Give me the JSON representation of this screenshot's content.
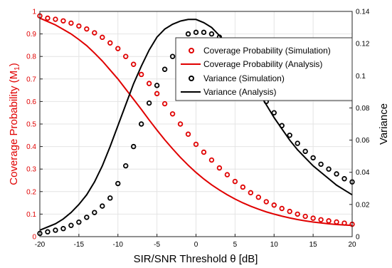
{
  "chart_data": {
    "type": "line",
    "xlabel": "SIR/SNR Threshold θ [dB]",
    "ylabel_left": "Coverage Probability (M",
    "ylabel_left_subscript": "1",
    "ylabel_left_close": ")",
    "ylabel_right": "Variance",
    "xlim": [
      -20,
      20
    ],
    "ylim_left": [
      0,
      1
    ],
    "ylim_right": [
      0,
      0.14
    ],
    "x_ticks": [
      "-20",
      "-15",
      "-10",
      "-5",
      "0",
      "5",
      "10",
      "15",
      "20"
    ],
    "y_left_ticks": [
      "0",
      "0.1",
      "0.2",
      "0.3",
      "0.4",
      "0.5",
      "0.6",
      "0.7",
      "0.8",
      "0.9",
      "1"
    ],
    "y_right_ticks": [
      "0",
      "0.02",
      "0.04",
      "0.06",
      "0.08",
      "0.1",
      "0.12",
      "0.14"
    ],
    "grid": true,
    "legend_position": "top-right",
    "colors": {
      "coverage": "#e00000",
      "variance": "#000000"
    },
    "series": [
      {
        "name": "Coverage Probability (Simulation)",
        "axis": "left",
        "style": "marker",
        "color": "#e00000",
        "x": [
          -20,
          -19,
          -18,
          -17,
          -16,
          -15,
          -14,
          -13,
          -12,
          -11,
          -10,
          -9,
          -8,
          -7,
          -6,
          -5,
          -4,
          -3,
          -2,
          -1,
          0,
          1,
          2,
          3,
          4,
          5,
          6,
          7,
          8,
          9,
          10,
          11,
          12,
          13,
          14,
          15,
          16,
          17,
          18,
          19,
          20
        ],
        "y": [
          0.98,
          0.97,
          0.965,
          0.958,
          0.948,
          0.935,
          0.922,
          0.905,
          0.885,
          0.86,
          0.835,
          0.8,
          0.765,
          0.72,
          0.68,
          0.635,
          0.59,
          0.545,
          0.5,
          0.455,
          0.41,
          0.375,
          0.34,
          0.305,
          0.275,
          0.245,
          0.22,
          0.195,
          0.175,
          0.155,
          0.14,
          0.125,
          0.112,
          0.1,
          0.09,
          0.082,
          0.075,
          0.07,
          0.065,
          0.06,
          0.055
        ]
      },
      {
        "name": "Coverage Probability (Analysis)",
        "axis": "left",
        "style": "line",
        "color": "#e00000",
        "x": [
          -20,
          -19,
          -18,
          -17,
          -16,
          -15,
          -14,
          -13,
          -12,
          -11,
          -10,
          -9,
          -8,
          -7,
          -6,
          -5,
          -4,
          -3,
          -2,
          -1,
          0,
          1,
          2,
          3,
          4,
          5,
          6,
          7,
          8,
          9,
          10,
          11,
          12,
          13,
          14,
          15,
          16,
          17,
          18,
          19,
          20
        ],
        "y": [
          0.97,
          0.955,
          0.94,
          0.92,
          0.9,
          0.875,
          0.848,
          0.815,
          0.78,
          0.74,
          0.7,
          0.655,
          0.61,
          0.565,
          0.518,
          0.473,
          0.43,
          0.39,
          0.352,
          0.317,
          0.285,
          0.256,
          0.23,
          0.207,
          0.186,
          0.167,
          0.15,
          0.135,
          0.122,
          0.11,
          0.1,
          0.091,
          0.083,
          0.076,
          0.07,
          0.065,
          0.061,
          0.057,
          0.054,
          0.052,
          0.05
        ]
      },
      {
        "name": "Variance (Simulation)",
        "axis": "right",
        "style": "marker",
        "color": "#000000",
        "x": [
          -20,
          -19,
          -18,
          -17,
          -16,
          -15,
          -14,
          -13,
          -12,
          -11,
          -10,
          -9,
          -8,
          -7,
          -6,
          -5,
          -4,
          -3,
          -2,
          -1,
          0,
          1,
          2,
          3,
          4,
          5,
          6,
          7,
          8,
          9,
          10,
          11,
          12,
          13,
          14,
          15,
          16,
          17,
          18,
          19,
          20
        ],
        "y": [
          0.002,
          0.003,
          0.004,
          0.005,
          0.007,
          0.009,
          0.012,
          0.015,
          0.019,
          0.024,
          0.033,
          0.044,
          0.056,
          0.07,
          0.083,
          0.094,
          0.104,
          0.112,
          0.118,
          0.126,
          0.127,
          0.127,
          0.126,
          0.124,
          0.12,
          0.114,
          0.107,
          0.099,
          0.092,
          0.084,
          0.077,
          0.069,
          0.063,
          0.058,
          0.053,
          0.049,
          0.045,
          0.042,
          0.039,
          0.036,
          0.034
        ]
      },
      {
        "name": "Variance (Analysis)",
        "axis": "right",
        "style": "line",
        "color": "#000000",
        "x": [
          -20,
          -19,
          -18,
          -17,
          -16,
          -15,
          -14,
          -13,
          -12,
          -11,
          -10,
          -9,
          -8,
          -7,
          -6,
          -5,
          -4,
          -3,
          -2,
          -1,
          0,
          1,
          2,
          3,
          4,
          5,
          6,
          7,
          8,
          9,
          10,
          11,
          12,
          13,
          14,
          15,
          16,
          17,
          18,
          19,
          20
        ],
        "y": [
          0.004,
          0.006,
          0.008,
          0.011,
          0.015,
          0.02,
          0.026,
          0.034,
          0.044,
          0.056,
          0.069,
          0.082,
          0.095,
          0.106,
          0.116,
          0.124,
          0.129,
          0.132,
          0.134,
          0.135,
          0.135,
          0.133,
          0.13,
          0.125,
          0.119,
          0.112,
          0.105,
          0.098,
          0.09,
          0.082,
          0.074,
          0.067,
          0.06,
          0.054,
          0.049,
          0.044,
          0.04,
          0.036,
          0.032,
          0.029,
          0.026
        ]
      }
    ]
  }
}
